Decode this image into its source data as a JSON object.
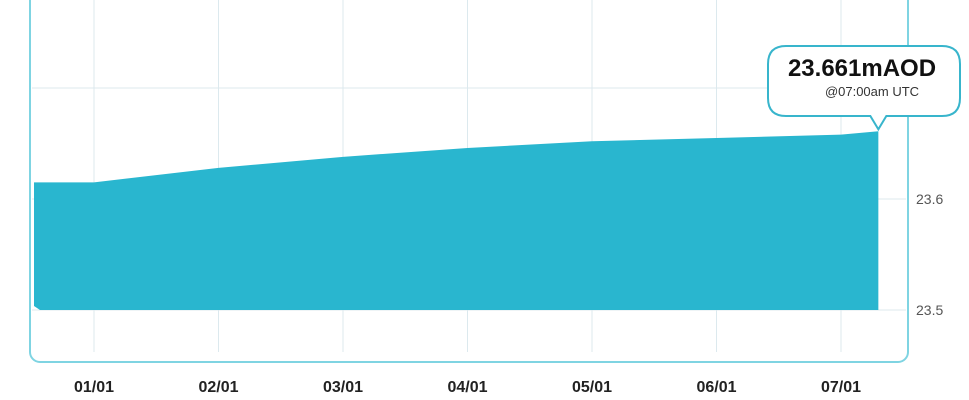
{
  "colors": {
    "area_fill": "#29b6cf",
    "frame": "#7fd4e2",
    "grid": "#dce9ee",
    "tooltip_border": "#38b5cc"
  },
  "chart_data": {
    "type": "area",
    "categories": [
      "01/01",
      "02/01",
      "03/01",
      "04/01",
      "05/01",
      "06/01",
      "07/01"
    ],
    "x": [
      0,
      1,
      2,
      3,
      4,
      5,
      6,
      6.3
    ],
    "values": [
      23.615,
      23.628,
      23.638,
      23.646,
      23.652,
      23.655,
      23.658,
      23.661
    ],
    "yticks": [
      23.5,
      23.6,
      23.7
    ],
    "ylim": [
      23.5,
      23.7
    ],
    "grid": true,
    "area_baseline": 23.5,
    "tooltip": {
      "value": "23.661mAOD",
      "time": "@07:00am UTC"
    }
  }
}
